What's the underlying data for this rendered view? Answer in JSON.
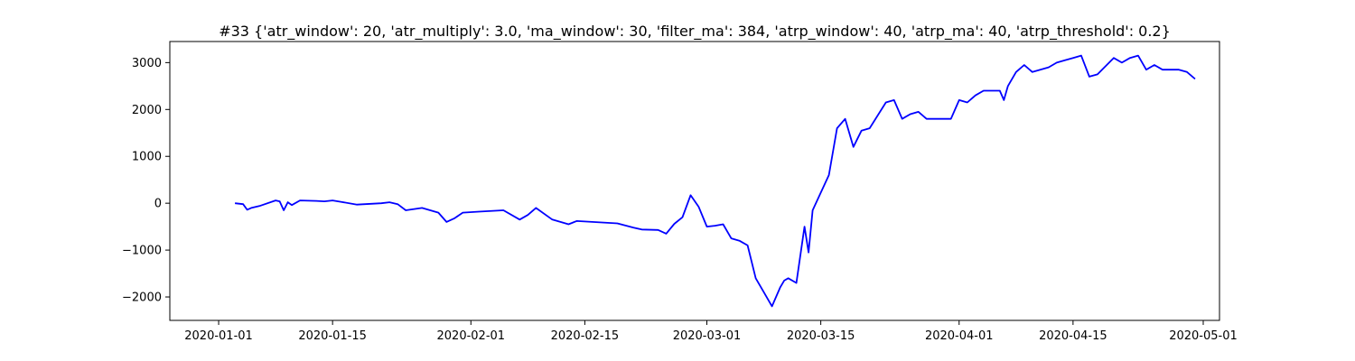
{
  "chart_data": {
    "type": "line",
    "title": "#33 {'atr_window': 20, 'atr_multiply': 3.0, 'ma_window': 30, 'filter_ma': 384, 'atrp_window': 40, 'atrp_ma': 40, 'atrp_threshold': 0.2}",
    "xlabel": "",
    "ylabel": "",
    "xlim": [
      "2019-12-26",
      "2020-05-03"
    ],
    "ylim": [
      -2500,
      3450
    ],
    "grid": false,
    "line_color": "#0000ff",
    "x_ticks": [
      "2020-01-01",
      "2020-01-15",
      "2020-02-01",
      "2020-02-15",
      "2020-03-01",
      "2020-03-15",
      "2020-04-01",
      "2020-04-15",
      "2020-05-01"
    ],
    "y_ticks": [
      {
        "value": 3000,
        "label": "3000"
      },
      {
        "value": 2000,
        "label": "2000"
      },
      {
        "value": 1000,
        "label": "1000"
      },
      {
        "value": 0,
        "label": "0"
      },
      {
        "value": -1000,
        "label": "−1000"
      },
      {
        "value": -2000,
        "label": "−2000"
      }
    ],
    "series": [
      {
        "x": [
          "2020-01-03",
          "2020-01-04",
          "2020-01-04T12:00",
          "2020-01-05",
          "2020-01-06",
          "2020-01-08",
          "2020-01-08T12:00",
          "2020-01-09",
          "2020-01-09T12:00",
          "2020-01-10",
          "2020-01-11",
          "2020-01-13",
          "2020-01-14",
          "2020-01-15",
          "2020-01-16",
          "2020-01-18",
          "2020-01-21",
          "2020-01-22",
          "2020-01-23",
          "2020-01-24",
          "2020-01-26",
          "2020-01-28",
          "2020-01-29",
          "2020-01-30",
          "2020-01-31",
          "2020-02-02",
          "2020-02-05",
          "2020-02-07",
          "2020-02-08",
          "2020-02-09",
          "2020-02-11",
          "2020-02-13",
          "2020-02-14",
          "2020-02-19",
          "2020-02-21",
          "2020-02-22",
          "2020-02-24",
          "2020-02-25",
          "2020-02-26",
          "2020-02-27",
          "2020-02-28",
          "2020-02-29",
          "2020-03-01",
          "2020-03-02",
          "2020-03-03",
          "2020-03-04",
          "2020-03-05",
          "2020-03-06",
          "2020-03-07",
          "2020-03-08",
          "2020-03-09",
          "2020-03-10",
          "2020-03-10T12:00",
          "2020-03-11",
          "2020-03-12",
          "2020-03-13",
          "2020-03-13T12:00",
          "2020-03-14",
          "2020-03-16",
          "2020-03-17",
          "2020-03-18",
          "2020-03-19",
          "2020-03-20",
          "2020-03-21",
          "2020-03-23",
          "2020-03-24",
          "2020-03-25",
          "2020-03-26",
          "2020-03-27",
          "2020-03-28",
          "2020-03-31",
          "2020-04-01",
          "2020-04-02",
          "2020-04-03",
          "2020-04-04",
          "2020-04-06",
          "2020-04-06T12:00",
          "2020-04-07",
          "2020-04-08",
          "2020-04-09",
          "2020-04-10",
          "2020-04-12",
          "2020-04-13",
          "2020-04-14",
          "2020-04-15",
          "2020-04-16",
          "2020-04-17",
          "2020-04-18",
          "2020-04-20",
          "2020-04-21",
          "2020-04-22",
          "2020-04-23",
          "2020-04-24",
          "2020-04-25",
          "2020-04-26",
          "2020-04-28",
          "2020-04-29",
          "2020-04-30"
        ],
        "values": [
          0,
          -20,
          -140,
          -100,
          -60,
          60,
          40,
          -150,
          20,
          -40,
          60,
          50,
          40,
          60,
          30,
          -30,
          0,
          20,
          -20,
          -150,
          -100,
          -200,
          -400,
          -320,
          -200,
          -180,
          -150,
          -350,
          -250,
          -100,
          -350,
          -450,
          -380,
          -430,
          -520,
          -560,
          -570,
          -650,
          -440,
          -300,
          170,
          -80,
          -500,
          -480,
          -450,
          -750,
          -800,
          -900,
          -1600,
          -1900,
          -2200,
          -1800,
          -1650,
          -1600,
          -1700,
          -500,
          -1050,
          -150,
          600,
          1600,
          1800,
          1200,
          1550,
          1600,
          2150,
          2200,
          1800,
          1900,
          1950,
          1800,
          1800,
          2200,
          2150,
          2300,
          2400,
          2400,
          2200,
          2500,
          2800,
          2950,
          2800,
          2900,
          3000,
          3050,
          3100,
          3150,
          2700,
          2750,
          3100,
          3000,
          3100,
          3150,
          2850,
          2950,
          2850,
          2850,
          2800,
          2650
        ]
      }
    ]
  }
}
